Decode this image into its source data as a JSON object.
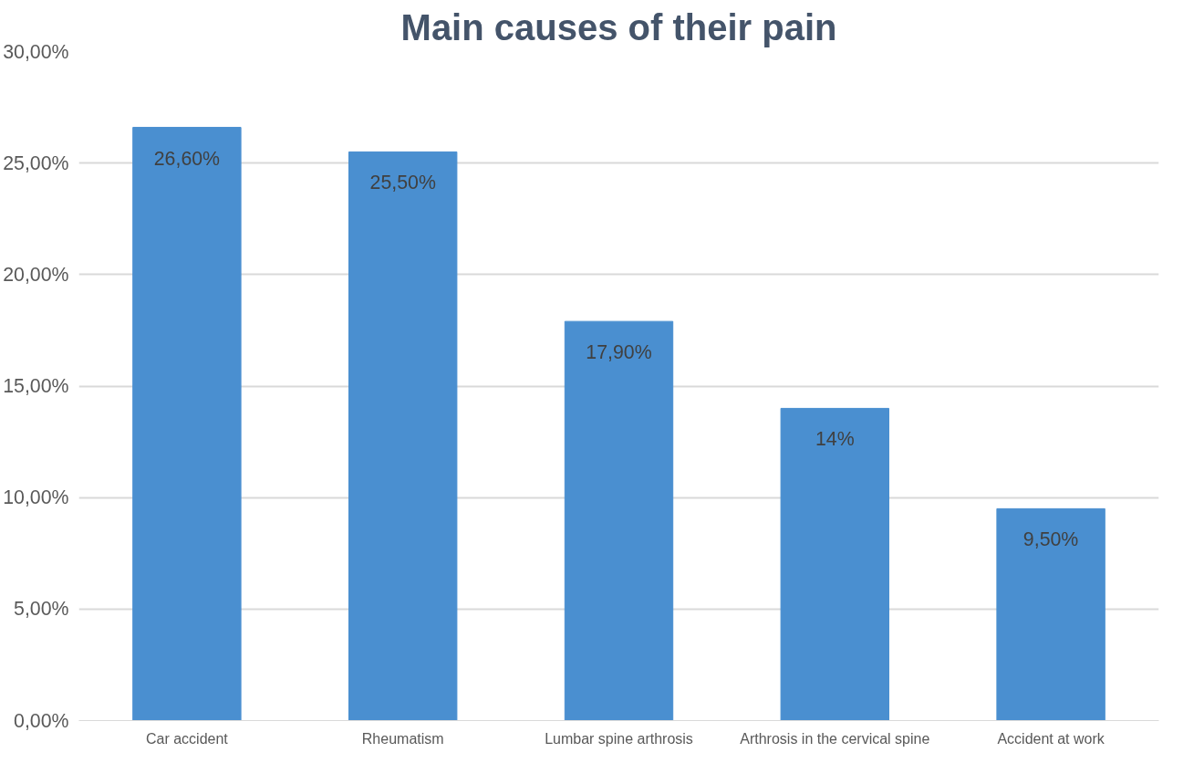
{
  "chart_data": {
    "type": "bar",
    "title": "Main causes of their pain",
    "categories": [
      "Car accident",
      "Rheumatism",
      "Lumbar spine arthrosis",
      "Arthrosis in the cervical spine",
      "Accident at work"
    ],
    "values": [
      26.6,
      25.5,
      17.9,
      14,
      9.5
    ],
    "value_labels": [
      "26,60%",
      "25,50%",
      "17,90%",
      "14%",
      "9,50%"
    ],
    "color": "#4a8fd0",
    "ylim": [
      0,
      30
    ],
    "yticks": [
      {
        "value": 0,
        "label": "0,00%"
      },
      {
        "value": 5,
        "label": "5,00%"
      },
      {
        "value": 10,
        "label": "10,00%"
      },
      {
        "value": 15,
        "label": "15,00%"
      },
      {
        "value": 20,
        "label": "20,00%"
      },
      {
        "value": 25,
        "label": "25,00%"
      },
      {
        "value": 30,
        "label": "30,00%"
      }
    ],
    "grid": "y"
  }
}
